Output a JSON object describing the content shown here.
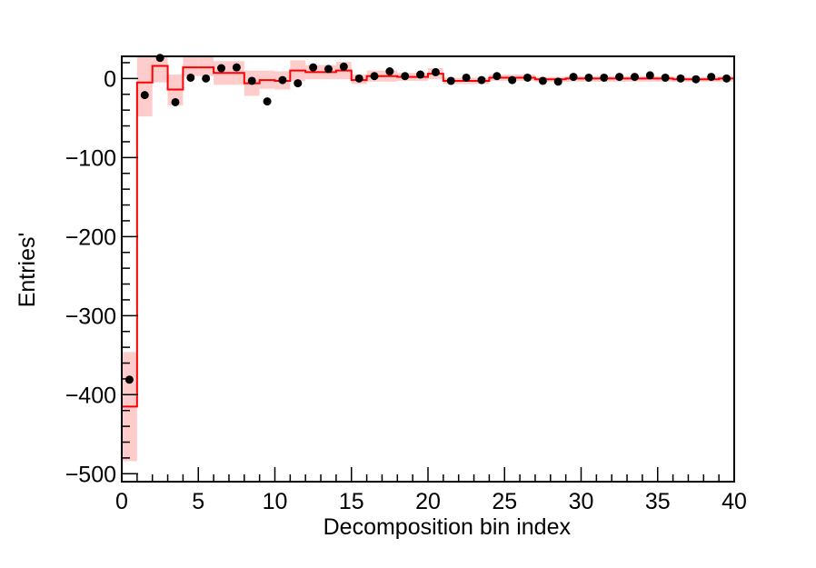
{
  "chart_data": {
    "type": "histogram",
    "xlabel": "Decomposition bin index",
    "ylabel": "Entries'",
    "xlim": [
      0,
      40
    ],
    "ylim": [
      -510,
      28
    ],
    "x_ticks": [
      0,
      5,
      10,
      15,
      20,
      25,
      30,
      35,
      40
    ],
    "y_ticks": [
      0,
      -100,
      -200,
      -300,
      -400,
      -500
    ],
    "grid": false,
    "legend": "none",
    "colors": {
      "line": "#ff0000",
      "band": "#ffcccc",
      "points": "#000000"
    },
    "bins": [
      0,
      1,
      2,
      3,
      4,
      5,
      6,
      7,
      8,
      9,
      10,
      11,
      12,
      13,
      14,
      15,
      16,
      17,
      18,
      19,
      20,
      21,
      22,
      23,
      24,
      25,
      26,
      27,
      28,
      29,
      30,
      31,
      32,
      33,
      34,
      35,
      36,
      37,
      38,
      39
    ],
    "series": [
      {
        "type": "step",
        "values": [
          -415,
          -5,
          16,
          -14,
          14,
          14,
          7,
          7,
          -6,
          -2,
          -3,
          10,
          8,
          8,
          10,
          -2,
          3,
          3,
          2,
          2,
          6,
          -3,
          -3,
          -3,
          1,
          1,
          1,
          -1,
          -1,
          0,
          0,
          0,
          0,
          0,
          0,
          0,
          -1,
          -1,
          -1,
          0
        ],
        "band_low": [
          -484,
          -48,
          -5,
          -34,
          3,
          3,
          -8,
          -8,
          -22,
          -13,
          -14,
          -3,
          -1,
          -1,
          -1,
          -7,
          -4,
          -4,
          -3,
          -3,
          -1,
          -7,
          -7,
          -7,
          -3,
          -3,
          -3,
          -4,
          -4,
          -4,
          -4,
          -4,
          -4,
          -4,
          -4,
          -4,
          -4,
          -4,
          -4,
          -4
        ],
        "band_high": [
          -346,
          29,
          29,
          5,
          29,
          29,
          22,
          22,
          10,
          10,
          9,
          23,
          17,
          17,
          21,
          5,
          10,
          10,
          7,
          7,
          13,
          1,
          1,
          1,
          5,
          5,
          5,
          2,
          2,
          3,
          3,
          3,
          3,
          3,
          3,
          3,
          2,
          2,
          2,
          3
        ]
      },
      {
        "type": "scatter",
        "values": [
          -381,
          -21,
          26,
          -30,
          1,
          0,
          13,
          14,
          -3,
          -29,
          -2,
          -6,
          14,
          12,
          15,
          0,
          3,
          9,
          3,
          5,
          8,
          -3,
          1,
          -2,
          3,
          -2,
          1,
          -3,
          -4,
          2,
          1,
          1,
          2,
          2,
          4,
          1,
          0,
          -1,
          2,
          0
        ]
      }
    ]
  }
}
